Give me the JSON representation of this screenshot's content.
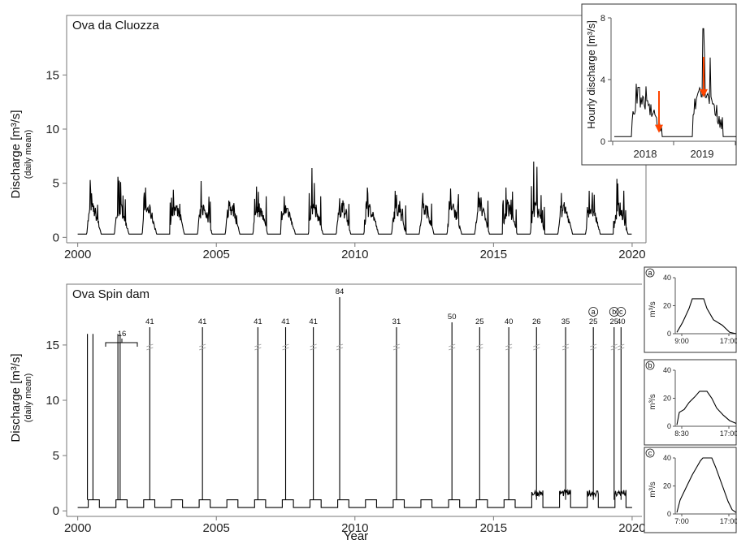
{
  "chart_data": [
    {
      "type": "line",
      "panel": "top",
      "title": "Ova da Cluozza",
      "ylabel": "Discharge [m³/s]",
      "ylabel_sub": "(daily mean)",
      "xlim": [
        1999.6,
        2020.5
      ],
      "ylim": [
        -0.5,
        20.5
      ],
      "yticks": [
        0,
        5,
        10,
        15
      ],
      "xticks": [
        2000,
        2005,
        2010,
        2015,
        2020
      ],
      "series": [
        {
          "annual_peaks": [
            {
              "year": 2000,
              "peak": 5.3
            },
            {
              "year": 2001,
              "peak": 5.6
            },
            {
              "year": 2002,
              "peak": 4.6
            },
            {
              "year": 2003,
              "peak": 4.4
            },
            {
              "year": 2004,
              "peak": 5.2
            },
            {
              "year": 2005,
              "peak": 3.4
            },
            {
              "year": 2006,
              "peak": 4.7
            },
            {
              "year": 2007,
              "peak": 3.8
            },
            {
              "year": 2008,
              "peak": 6.4
            },
            {
              "year": 2009,
              "peak": 3.6
            },
            {
              "year": 2010,
              "peak": 4.6
            },
            {
              "year": 2011,
              "peak": 4.3
            },
            {
              "year": 2012,
              "peak": 4.1
            },
            {
              "year": 2013,
              "peak": 4.5
            },
            {
              "year": 2014,
              "peak": 4.2
            },
            {
              "year": 2015,
              "peak": 4.6
            },
            {
              "year": 2016,
              "peak": 7.0
            },
            {
              "year": 2017,
              "peak": 4.1
            },
            {
              "year": 2018,
              "peak": 4.3
            },
            {
              "year": 2019,
              "peak": 5.4
            }
          ],
          "baseflow": 0.3
        }
      ]
    },
    {
      "type": "line",
      "panel": "inset-top",
      "ylabel": "Hourly discharge [m³/s]",
      "ylim": [
        0,
        8
      ],
      "yticks": [
        0,
        4,
        8
      ],
      "xticks": [
        "2018",
        "2019"
      ],
      "arrows": [
        {
          "x": "2018 late",
          "value": 0.6
        },
        {
          "x": "2019 mid",
          "value": 2.9
        }
      ]
    },
    {
      "type": "line",
      "panel": "bottom",
      "title": "Ova Spin dam",
      "xlabel": "Year",
      "ylabel": "Discharge [m³/s]",
      "ylabel_sub": "(daily mean)",
      "xlim": [
        1999.6,
        2020.5
      ],
      "ylim": [
        -0.5,
        20.5
      ],
      "yticks": [
        0,
        5,
        10,
        15
      ],
      "xticks": [
        2000,
        2005,
        2010,
        2015,
        2020
      ],
      "baseline": 0.3,
      "residual_flow": 1.0,
      "flushing_peaks": [
        {
          "x": 2000.35,
          "label": "",
          "value": 16
        },
        {
          "x": 2000.55,
          "label": "",
          "value": 16
        },
        {
          "x": 2001.45,
          "label": "",
          "value": 16
        },
        {
          "x": 2001.53,
          "label": "",
          "value": 16
        },
        {
          "x": 2002.6,
          "label": "41",
          "value": 41
        },
        {
          "x": 2004.5,
          "label": "41",
          "value": 41
        },
        {
          "x": 2006.5,
          "label": "41",
          "value": 41
        },
        {
          "x": 2007.5,
          "label": "41",
          "value": 41
        },
        {
          "x": 2008.5,
          "label": "41",
          "value": 41
        },
        {
          "x": 2009.45,
          "label": "84",
          "value": 84
        },
        {
          "x": 2011.5,
          "label": "31",
          "value": 31
        },
        {
          "x": 2013.5,
          "label": "50",
          "value": 50
        },
        {
          "x": 2014.5,
          "label": "25",
          "value": 25
        },
        {
          "x": 2015.55,
          "label": "40",
          "value": 40
        },
        {
          "x": 2016.55,
          "label": "26",
          "value": 26
        },
        {
          "x": 2017.6,
          "label": "35",
          "value": 35
        },
        {
          "x": 2018.6,
          "label": "25",
          "value": 25,
          "tag": "a"
        },
        {
          "x": 2019.35,
          "label": "25",
          "value": 25,
          "tag": "b"
        },
        {
          "x": 2019.6,
          "label": "40",
          "value": 40,
          "tag": "c"
        }
      ],
      "bracket_label": "16"
    },
    {
      "type": "line",
      "panel": "inset-a",
      "tag": "a",
      "ylabel": "m³/s",
      "yticks": [
        0,
        20,
        40
      ],
      "xticks": [
        "9:00",
        "17:00"
      ],
      "peak": 25
    },
    {
      "type": "line",
      "panel": "inset-b",
      "tag": "b",
      "ylabel": "m³/s",
      "yticks": [
        0,
        20,
        40
      ],
      "xticks": [
        "8:30",
        "17:00"
      ],
      "peak": 25
    },
    {
      "type": "line",
      "panel": "inset-c",
      "tag": "c",
      "ylabel": "m³/s",
      "yticks": [
        0,
        20,
        40
      ],
      "xticks": [
        "7:00",
        "17:00"
      ],
      "peak": 40
    }
  ],
  "colors": {
    "line": "#000000",
    "arrow": "#ff4500",
    "axis": "#666666"
  }
}
